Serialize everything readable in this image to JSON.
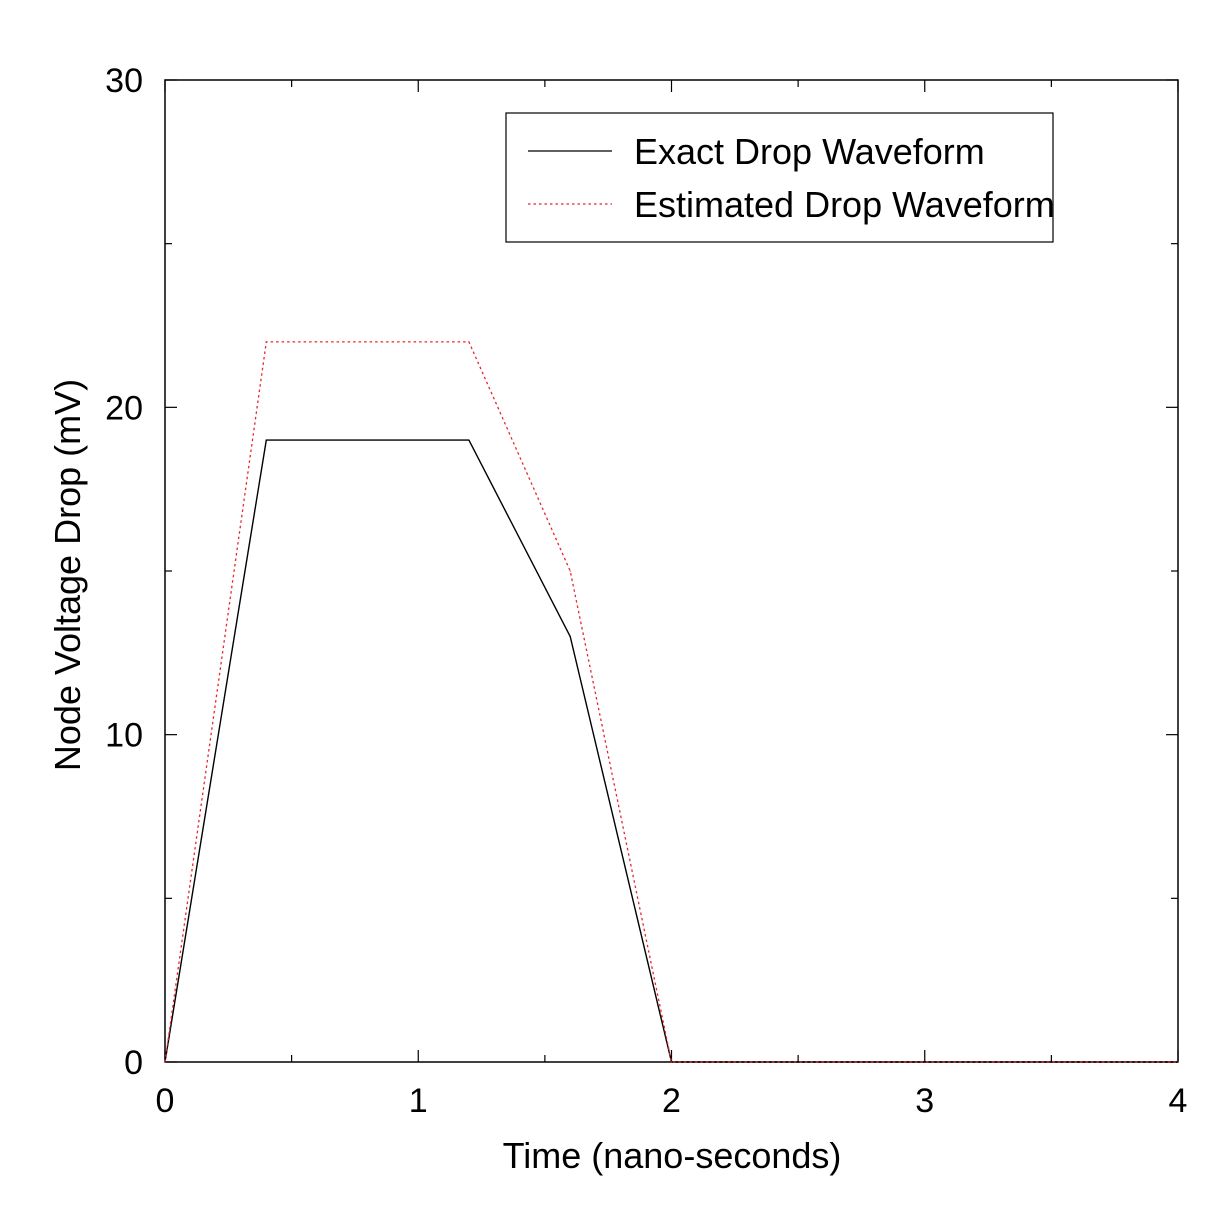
{
  "chart_data": {
    "type": "line",
    "title": "",
    "xlabel": "Time (nano-seconds)",
    "ylabel": "Node Voltage Drop (mV)",
    "xlim": [
      0,
      4
    ],
    "ylim": [
      0,
      30
    ],
    "x_ticks": [
      0,
      1,
      2,
      3,
      4
    ],
    "y_ticks": [
      0,
      10,
      20,
      30
    ],
    "x_minor_step": 0.5,
    "y_minor_step": 5,
    "grid": false,
    "legend_position": "top-right",
    "series": [
      {
        "name": "Exact Drop Waveform",
        "color": "#000000",
        "dash": "solid",
        "x": [
          0,
          0.4,
          1.2,
          1.6,
          2.0,
          4.0
        ],
        "y": [
          0,
          19,
          19,
          13,
          0,
          0
        ]
      },
      {
        "name": "Estimated Drop Waveform",
        "color": "#e8252a",
        "dash": "dotted",
        "x": [
          0,
          0.4,
          1.2,
          1.6,
          2.0,
          4.0
        ],
        "y": [
          0,
          22,
          22,
          15,
          0,
          0
        ]
      }
    ]
  }
}
